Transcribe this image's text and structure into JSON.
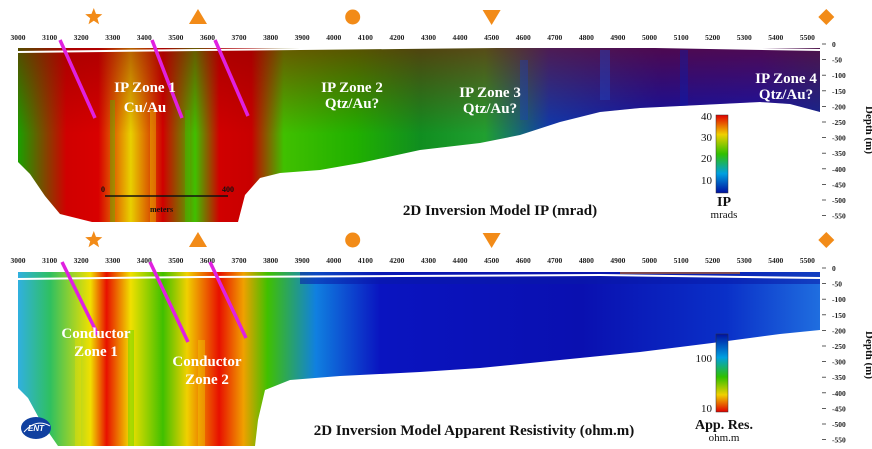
{
  "x_ticks": [
    "3000",
    "3100",
    "3200",
    "3300",
    "3400",
    "3500",
    "3600",
    "3700",
    "3800",
    "3900",
    "4000",
    "4100",
    "4200",
    "4300",
    "4400",
    "4500",
    "4600",
    "4700",
    "4800",
    "4900",
    "5000",
    "5100",
    "5200",
    "5300",
    "5400",
    "5500"
  ],
  "depth_ticks": [
    "0",
    "-50",
    "-100",
    "-150",
    "-200",
    "-250",
    "-300",
    "-350",
    "-400",
    "-450",
    "-500",
    "-550"
  ],
  "depth_label": "Depth (m)",
  "colors": {
    "red": "#d40000",
    "yellow": "#f0e000",
    "green": "#2fb400",
    "blue": "#0a10b0",
    "marker": "#f28b18",
    "line": "#e020e0"
  },
  "markers": [
    {
      "icon": "star-icon",
      "at": "3240"
    },
    {
      "icon": "triangle-up-icon",
      "at": "3570"
    },
    {
      "icon": "circle-icon",
      "at": "4060"
    },
    {
      "icon": "triangle-down-icon",
      "at": "4500"
    },
    {
      "icon": "diamond-icon",
      "at": "5560"
    }
  ],
  "ip_panel": {
    "title": "2D Inversion Model IP (mrad)",
    "zones": [
      {
        "line1": "IP Zone 1",
        "line2": "Cu/Au"
      },
      {
        "line1": "IP Zone 2",
        "line2": "Qtz/Au?"
      },
      {
        "line1": "IP Zone 3",
        "line2": "Qtz/Au?"
      },
      {
        "line1": "IP Zone 4",
        "line2": "Qtz/Au?"
      }
    ],
    "colorbar": {
      "max": "40",
      "mid": [
        "30",
        "20",
        "10"
      ],
      "title": "IP",
      "unit": "mrads"
    },
    "scale_bar": {
      "start": "0",
      "end": "400",
      "unit": "meters"
    }
  },
  "res_panel": {
    "title": "2D Inversion Model Apparent Resistivity (ohm.m)",
    "zones": [
      {
        "line1": "Conductor",
        "line2": "Zone 1"
      },
      {
        "line1": "Conductor",
        "line2": "Zone 2"
      }
    ],
    "colorbar": {
      "top": "100",
      "bottom": "10",
      "title": "App. Res.",
      "unit": "ohm.m"
    }
  },
  "logo": {
    "text": "ENT"
  }
}
